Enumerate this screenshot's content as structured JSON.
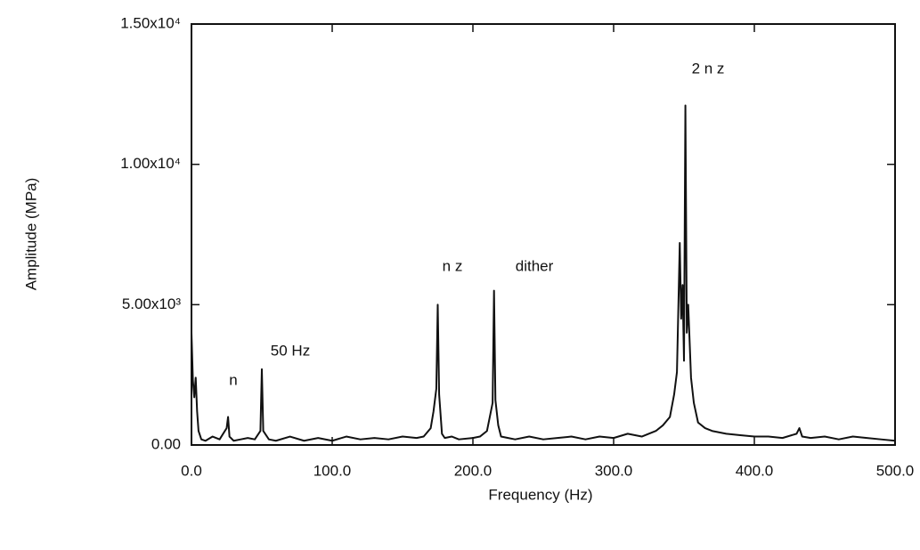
{
  "chart_data": {
    "type": "line",
    "x_label": "Frequency (Hz)",
    "y_label": "Amplitude (MPa)",
    "color": "#111111",
    "xlim": [
      0,
      500
    ],
    "ylim": [
      0,
      15000
    ],
    "xticks": [
      {
        "value": 0,
        "label": "0.0"
      },
      {
        "value": 100,
        "label": "100.0"
      },
      {
        "value": 200,
        "label": "200.0"
      },
      {
        "value": 300,
        "label": "300.0"
      },
      {
        "value": 400,
        "label": "400.0"
      },
      {
        "value": 500,
        "label": "500.0"
      }
    ],
    "yticks": [
      {
        "value": 0,
        "label": "0.00"
      },
      {
        "value": 5000,
        "label": "5.00x10³"
      },
      {
        "value": 10000,
        "label": "1.00x10⁴"
      },
      {
        "value": 15000,
        "label": "1.50x10⁴"
      }
    ],
    "annotations": [
      "n",
      "50 Hz",
      "n z",
      "dither",
      "2 n z"
    ],
    "x": [
      0,
      1,
      2,
      3,
      4,
      5,
      7,
      10,
      15,
      20,
      25,
      26,
      27,
      30,
      35,
      40,
      45,
      49,
      50,
      51,
      55,
      60,
      70,
      80,
      90,
      100,
      110,
      120,
      130,
      140,
      150,
      160,
      165,
      170,
      172,
      174,
      175,
      176,
      178,
      180,
      185,
      190,
      200,
      205,
      210,
      212,
      214,
      215,
      216,
      218,
      220,
      225,
      230,
      240,
      250,
      260,
      270,
      280,
      290,
      300,
      310,
      320,
      330,
      335,
      340,
      343,
      345,
      347,
      348,
      349,
      350,
      351,
      352,
      353,
      355,
      357,
      360,
      365,
      370,
      380,
      390,
      400,
      410,
      420,
      430,
      432,
      434,
      440,
      450,
      460,
      470,
      480,
      490,
      500
    ],
    "values": [
      4000,
      2300,
      1700,
      2400,
      1200,
      500,
      200,
      150,
      300,
      200,
      600,
      1000,
      300,
      150,
      200,
      250,
      200,
      500,
      2700,
      500,
      200,
      150,
      300,
      150,
      250,
      150,
      300,
      200,
      250,
      200,
      300,
      250,
      300,
      600,
      1200,
      2000,
      5000,
      1800,
      400,
      250,
      300,
      200,
      250,
      300,
      500,
      1000,
      1500,
      5500,
      1600,
      700,
      300,
      250,
      200,
      300,
      200,
      250,
      300,
      200,
      300,
      250,
      400,
      300,
      500,
      700,
      1000,
      1800,
      2600,
      7200,
      4500,
      5700,
      3000,
      12100,
      4000,
      5000,
      2400,
      1500,
      800,
      600,
      500,
      400,
      350,
      300,
      300,
      250,
      400,
      600,
      300,
      250,
      300,
      200,
      300,
      250,
      200,
      150
    ]
  }
}
